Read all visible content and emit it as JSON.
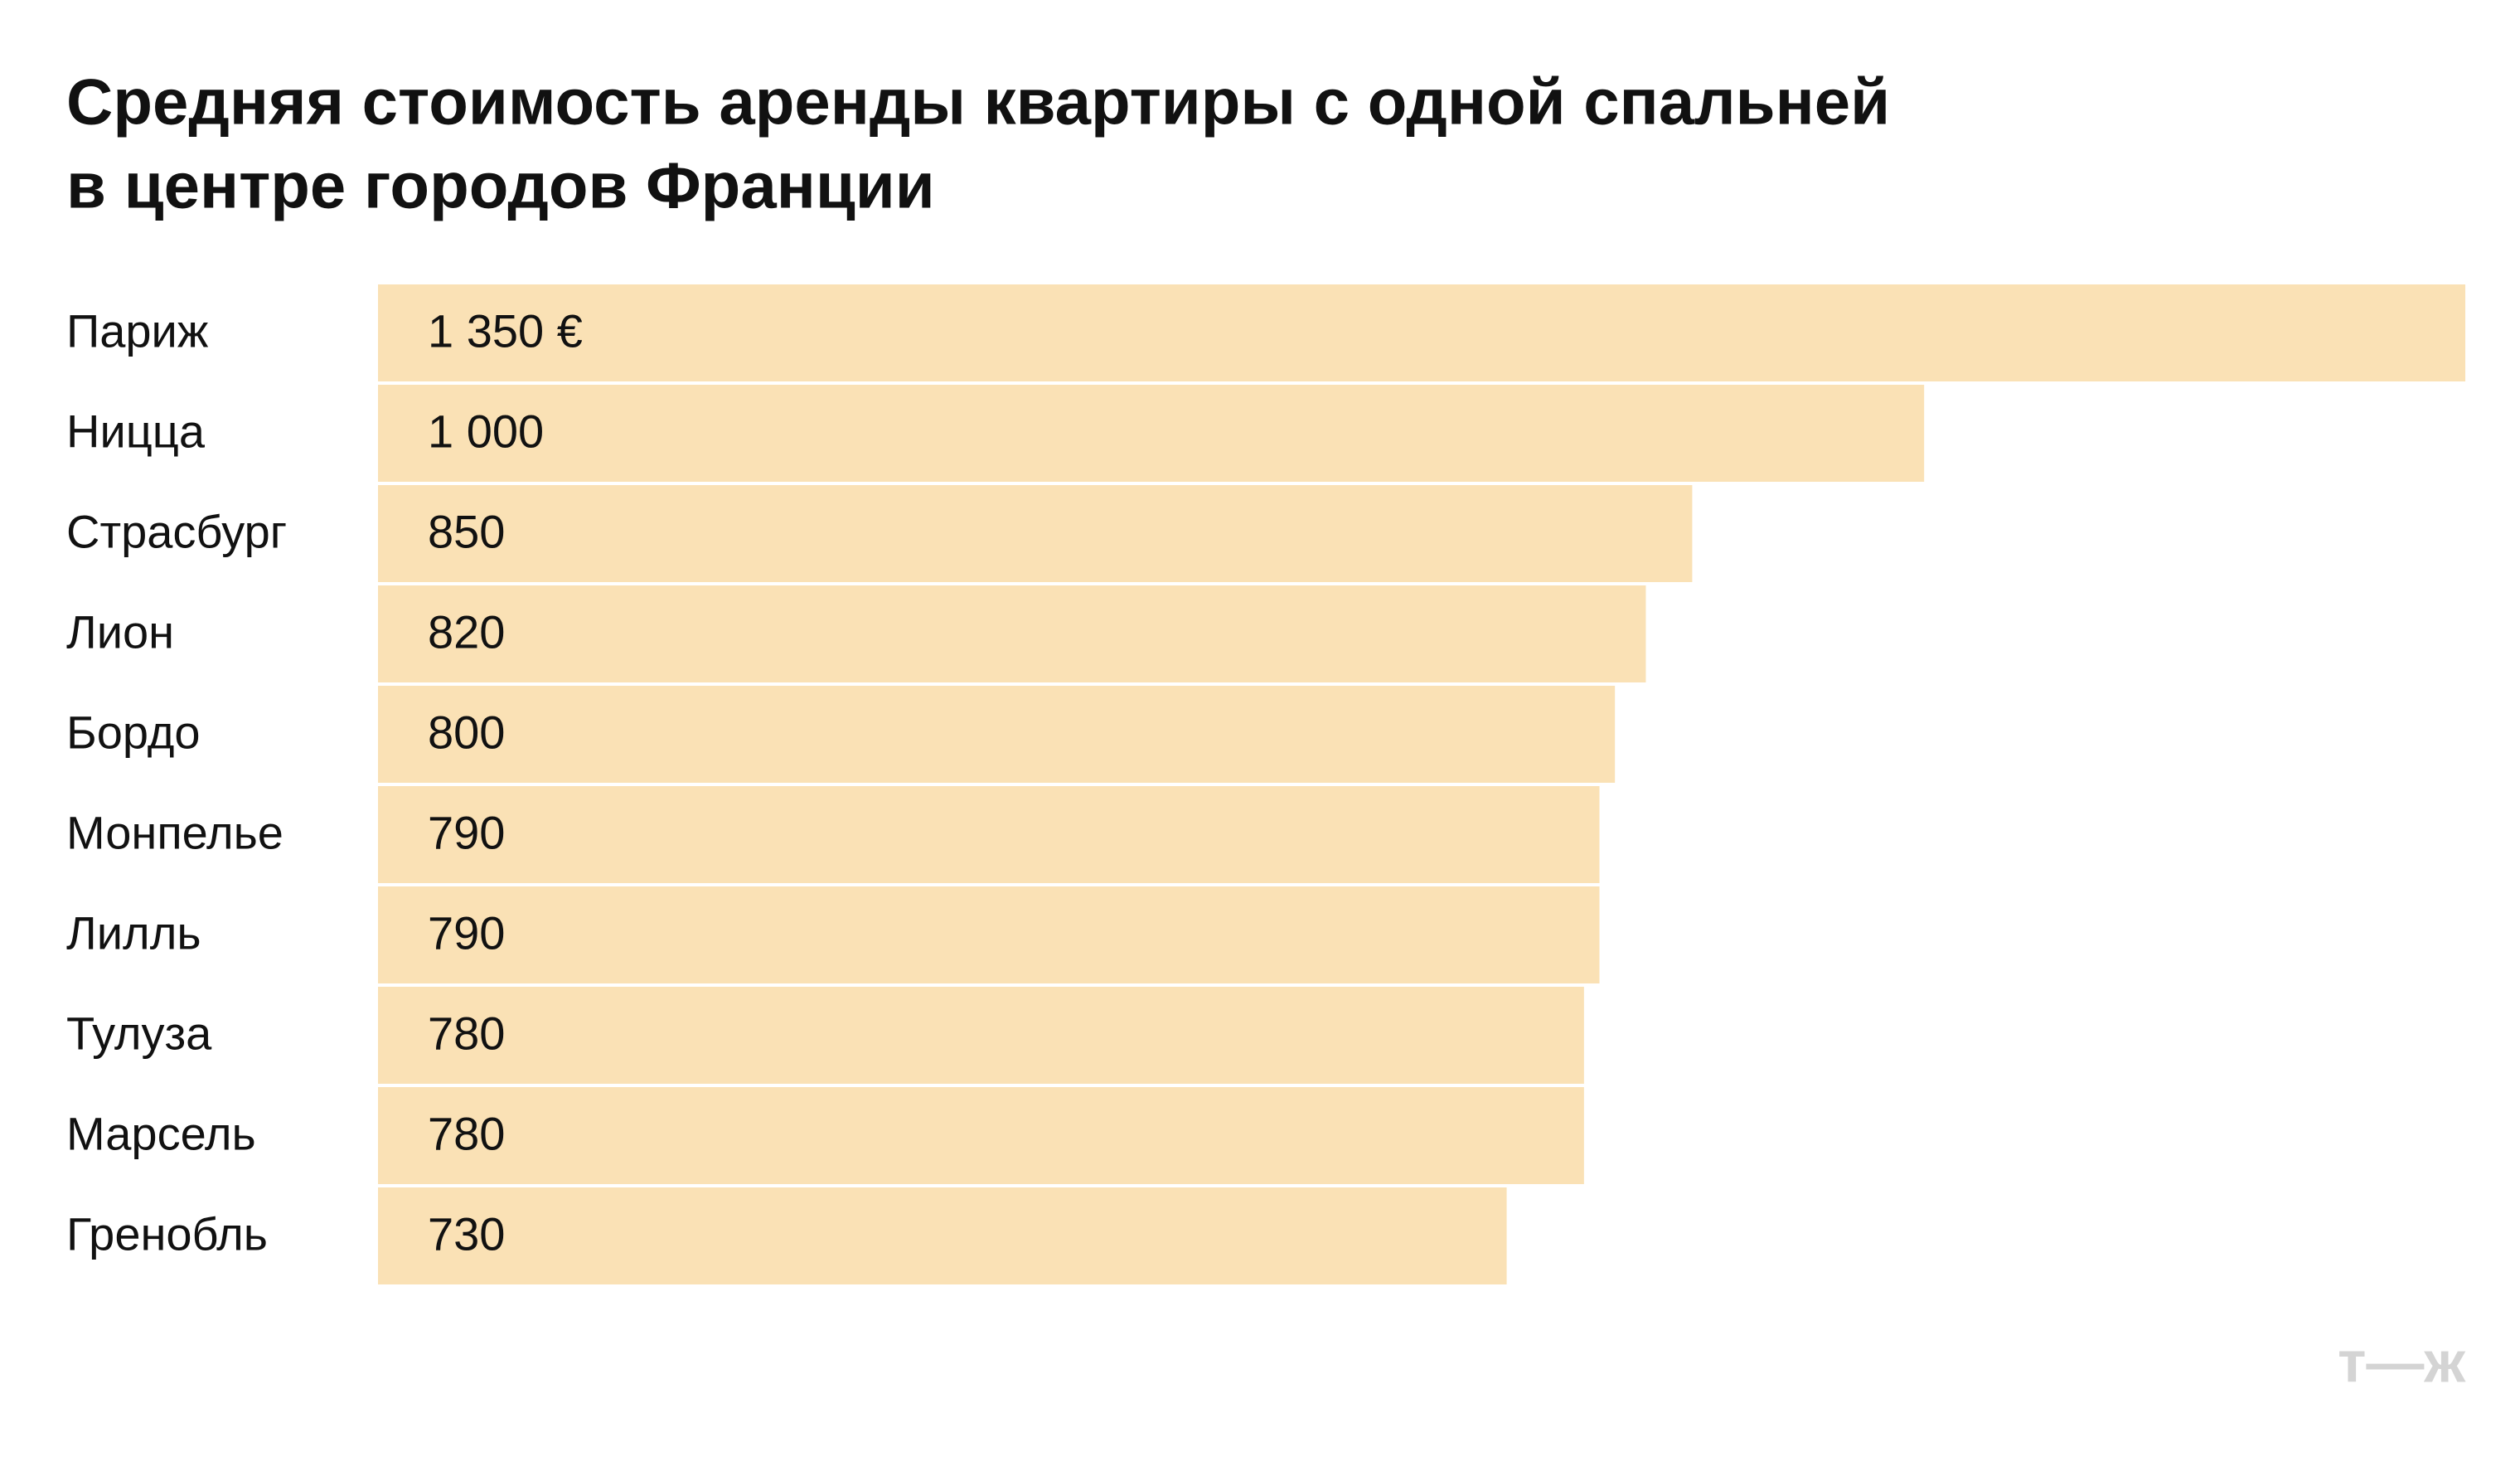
{
  "chart_data": {
    "type": "bar",
    "orientation": "horizontal",
    "title": [
      "Средняя стоимость аренды квартиры с одной спальней",
      "в центре городов Франции"
    ],
    "categories": [
      "Париж",
      "Ницца",
      "Страсбург",
      "Лион",
      "Бордо",
      "Монпелье",
      "Лилль",
      "Тулуза",
      "Марсель",
      "Гренобль"
    ],
    "values": [
      1350,
      1000,
      850,
      820,
      800,
      790,
      790,
      780,
      780,
      730
    ],
    "value_labels": [
      "1 350 €",
      "1 000",
      "850",
      "820",
      "800",
      "790",
      "790",
      "780",
      "780",
      "730"
    ],
    "color": "#fae1b5"
  },
  "logo": "т—ж"
}
